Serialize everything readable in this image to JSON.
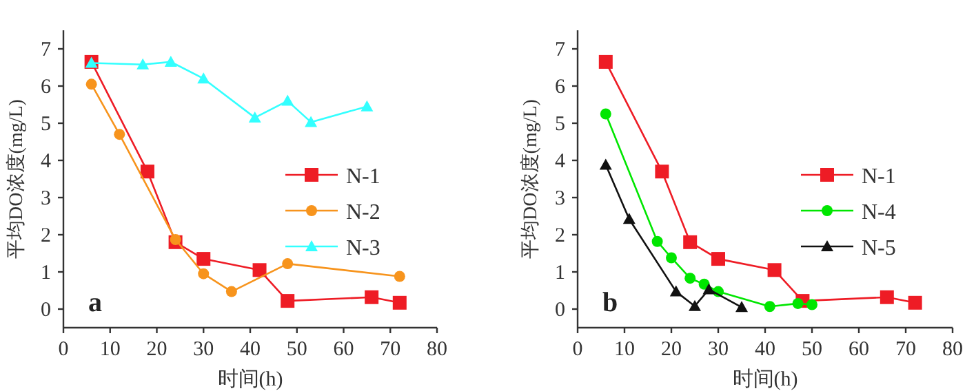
{
  "chart_data": [
    {
      "type": "line",
      "xlabel": "时间(h)",
      "ylabel": "平均DO浓度(mg/L)",
      "annotations": [
        "a"
      ],
      "xlim": [
        0,
        80
      ],
      "ylim": [
        -0.5,
        7.5
      ],
      "xticks": [
        0,
        10,
        20,
        30,
        40,
        50,
        60,
        70,
        80
      ],
      "yticks": [
        0,
        1,
        2,
        3,
        4,
        5,
        6,
        7
      ],
      "legend": "center right",
      "series": [
        {
          "name": "N-1",
          "color": "#ee1c25",
          "marker": "square",
          "x": [
            6,
            18,
            24,
            30,
            42,
            48,
            66,
            72
          ],
          "values": [
            6.65,
            3.7,
            1.8,
            1.35,
            1.05,
            0.22,
            0.32,
            0.17
          ]
        },
        {
          "name": "N-2",
          "color": "#f7941d",
          "marker": "circle",
          "x": [
            6,
            12,
            24,
            30,
            36,
            48,
            72
          ],
          "values": [
            6.05,
            4.7,
            1.87,
            0.95,
            0.47,
            1.22,
            0.88
          ]
        },
        {
          "name": "N-3",
          "color": "#33ffff",
          "marker": "triangle",
          "x": [
            6,
            17,
            23,
            30,
            41,
            48,
            53,
            65
          ],
          "values": [
            6.62,
            6.58,
            6.65,
            6.2,
            5.15,
            5.6,
            5.03,
            5.45
          ]
        }
      ]
    },
    {
      "type": "line",
      "xlabel": "时间(h)",
      "ylabel": "平均DO浓度(mg/L)",
      "annotations": [
        "b"
      ],
      "xlim": [
        0,
        80
      ],
      "ylim": [
        -0.5,
        7.5
      ],
      "xticks": [
        0,
        10,
        20,
        30,
        40,
        50,
        60,
        70,
        80
      ],
      "yticks": [
        0,
        1,
        2,
        3,
        4,
        5,
        6,
        7
      ],
      "legend": "center right",
      "series": [
        {
          "name": "N-1",
          "color": "#ee1c25",
          "marker": "square",
          "x": [
            6,
            18,
            24,
            30,
            42,
            48,
            66,
            72
          ],
          "values": [
            6.65,
            3.7,
            1.8,
            1.35,
            1.05,
            0.22,
            0.32,
            0.17
          ]
        },
        {
          "name": "N-4",
          "color": "#00e600",
          "marker": "circle",
          "x": [
            6,
            17,
            20,
            24,
            27,
            30,
            41,
            47,
            50
          ],
          "values": [
            5.25,
            1.82,
            1.38,
            0.83,
            0.67,
            0.47,
            0.07,
            0.15,
            0.12
          ]
        },
        {
          "name": "N-5",
          "color": "#111111",
          "marker": "triangle",
          "x": [
            6,
            11,
            21,
            25,
            28,
            35
          ],
          "values": [
            3.88,
            2.42,
            0.47,
            0.08,
            0.53,
            0.05
          ]
        }
      ]
    }
  ]
}
